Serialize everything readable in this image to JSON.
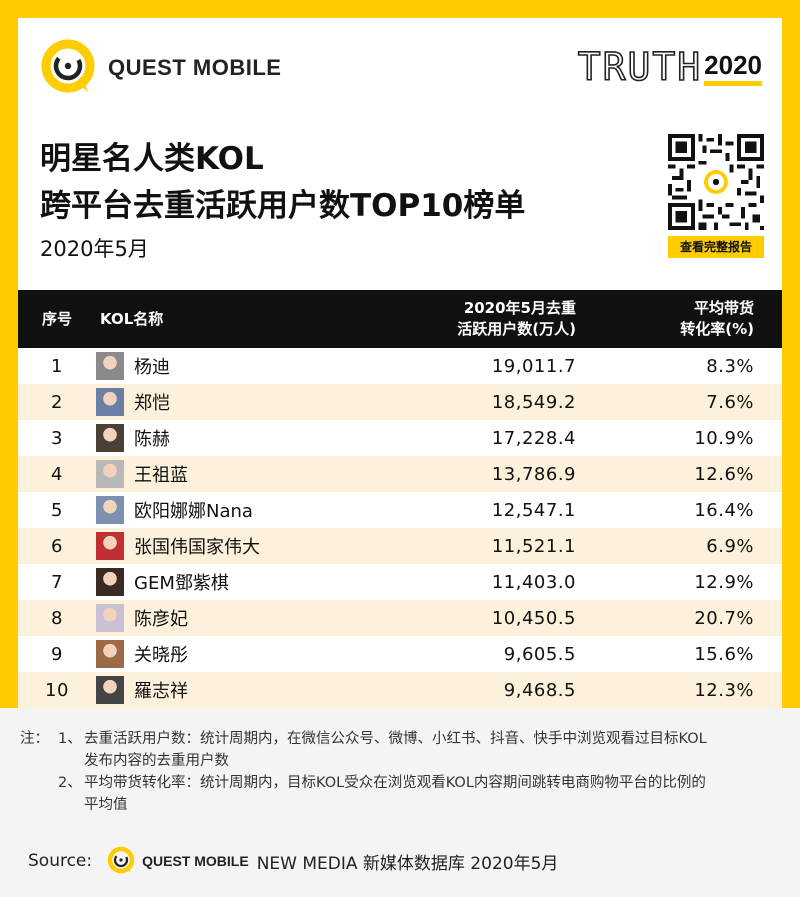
{
  "brand": {
    "name": "QUEST MOBILE",
    "accent": "#ffcc00"
  },
  "truth": {
    "word": "TRUTH",
    "year": "2020"
  },
  "title": {
    "line1": "明星名人类KOL",
    "line2": "跨平台去重活跃用户数TOP10榜单"
  },
  "date": "2020年5月",
  "qr": {
    "caption": "查看完整报告"
  },
  "table": {
    "headers": {
      "rank": "序号",
      "name": "KOL名称",
      "active_line1": "2020年5月去重",
      "active_line2": "活跃用户数(万人)",
      "conv_line1": "平均带货",
      "conv_line2": "转化率(%)"
    },
    "rows": [
      {
        "rank": "1",
        "name": "杨迪",
        "active": "19,011.7",
        "conv": "8.3%",
        "avatar_color": "#8a8a8a"
      },
      {
        "rank": "2",
        "name": "郑恺",
        "active": "18,549.2",
        "conv": "7.6%",
        "avatar_color": "#6b7fa6"
      },
      {
        "rank": "3",
        "name": "陈赫",
        "active": "17,228.4",
        "conv": "10.9%",
        "avatar_color": "#4a4036"
      },
      {
        "rank": "4",
        "name": "王祖蓝",
        "active": "13,786.9",
        "conv": "12.6%",
        "avatar_color": "#b8b8b8"
      },
      {
        "rank": "5",
        "name": "欧阳娜娜Nana",
        "active": "12,547.1",
        "conv": "16.4%",
        "avatar_color": "#7d8fb0"
      },
      {
        "rank": "6",
        "name": "张国伟国家伟大",
        "active": "11,521.1",
        "conv": "6.9%",
        "avatar_color": "#c03030"
      },
      {
        "rank": "7",
        "name": "GEM鄧紫棋",
        "active": "11,403.0",
        "conv": "12.9%",
        "avatar_color": "#3a2a22"
      },
      {
        "rank": "8",
        "name": "陈彦妃",
        "active": "10,450.5",
        "conv": "20.7%",
        "avatar_color": "#c9c0d4"
      },
      {
        "rank": "9",
        "name": "关晓彤",
        "active": "9,605.5",
        "conv": "15.6%",
        "avatar_color": "#9c6a44"
      },
      {
        "rank": "10",
        "name": "羅志祥",
        "active": "9,468.5",
        "conv": "12.3%",
        "avatar_color": "#444444"
      }
    ]
  },
  "notes": {
    "prefix": "注：",
    "items": [
      {
        "index": "1、",
        "line1": "去重活跃用户数：统计周期内，在微信公众号、微博、小红书、抖音、快手中浏览观看过目标KOL",
        "line2": "发布内容的去重用户数"
      },
      {
        "index": "2、",
        "line1": "平均带货转化率：统计周期内，目标KOL受众在浏览观看KOL内容期间跳转电商购物平台的比例的",
        "line2": "平均值"
      }
    ]
  },
  "source": {
    "label": "Source:",
    "brand": "QUEST MOBILE",
    "text": "NEW MEDIA 新媒体数据库 2020年5月"
  }
}
